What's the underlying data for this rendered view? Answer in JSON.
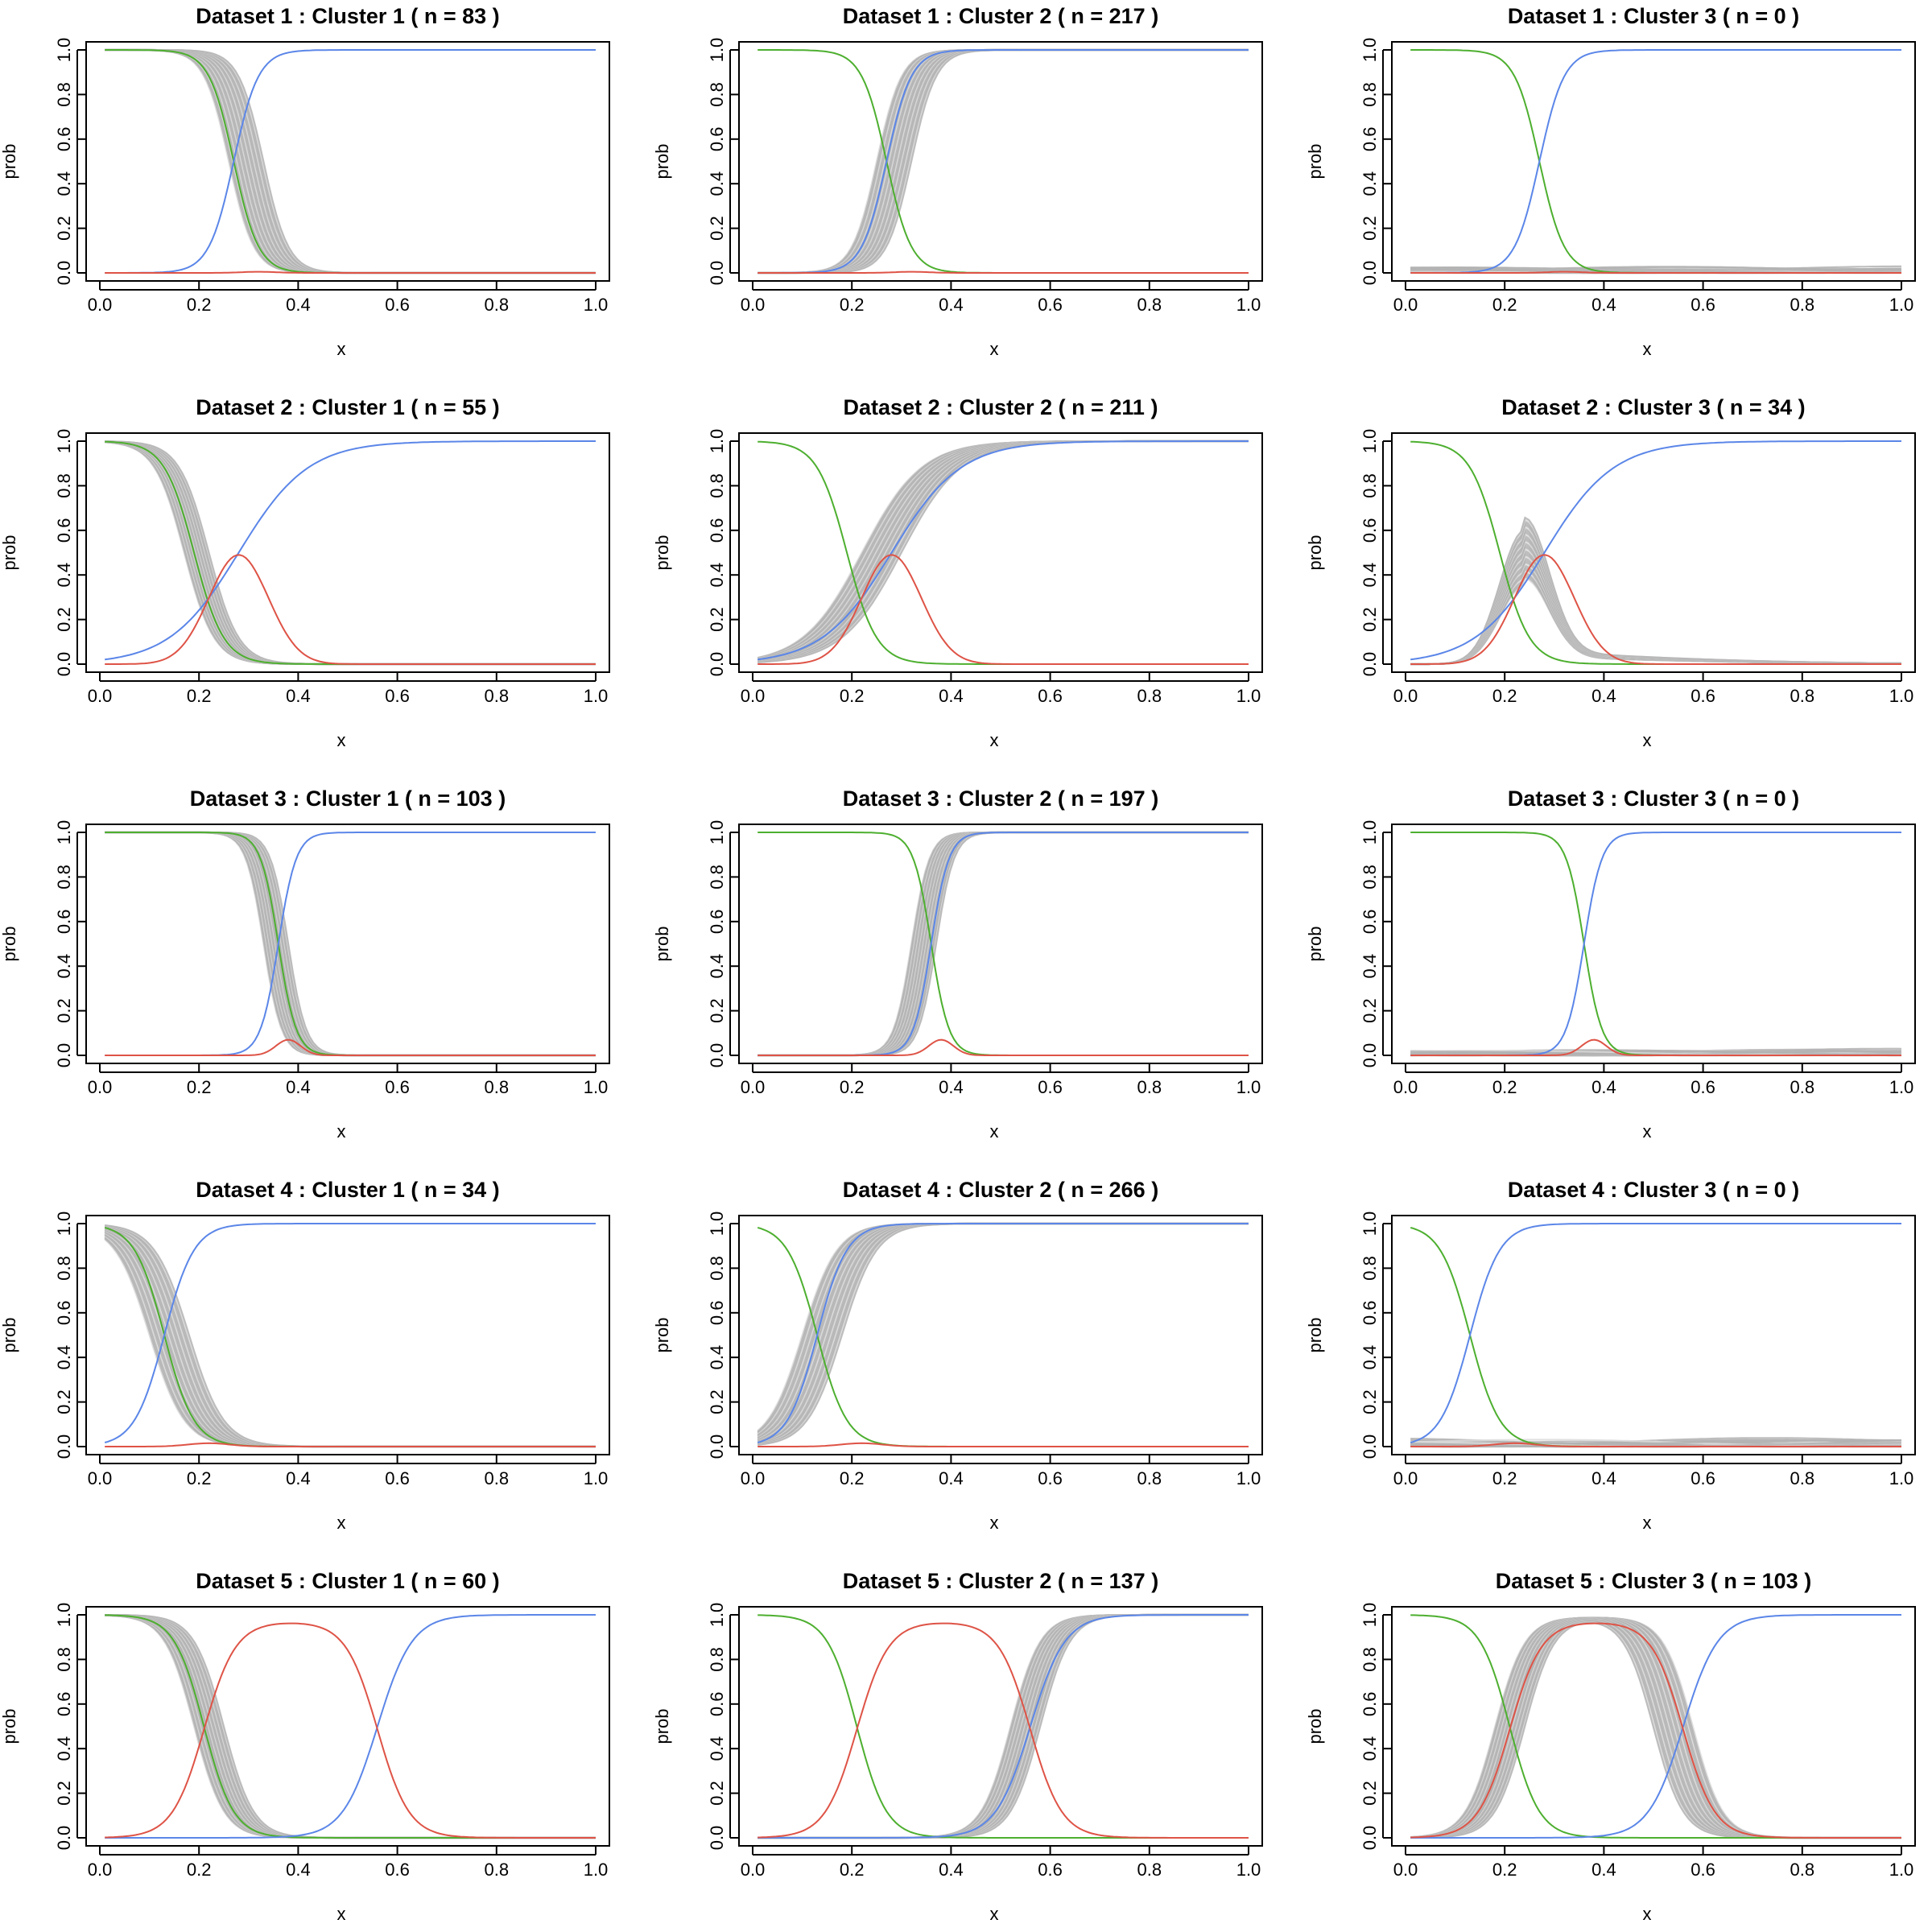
{
  "figure": {
    "xlabel": "x",
    "ylabel": "prob",
    "x_ticks": [
      "0.0",
      "0.2",
      "0.4",
      "0.6",
      "0.8",
      "1.0"
    ],
    "y_ticks": [
      "0.0",
      "0.2",
      "0.4",
      "0.6",
      "0.8",
      "1.0"
    ]
  },
  "colors": {
    "green": "#4daf2f",
    "blue": "#5b86e8",
    "red": "#de5346",
    "grey": "#b3b3b3",
    "grey_light": "#dcdcdc"
  },
  "chart_data": [
    {
      "type": "line",
      "title": "Dataset 1 : Cluster 1 ( n =  83 )",
      "xlabel": "x",
      "ylabel": "prob",
      "xlim": [
        0,
        1
      ],
      "ylim": [
        0,
        1
      ],
      "grid": false,
      "series": [
        {
          "color": "green",
          "shape": "sigmoid_down",
          "center": 0.27,
          "width": 0.025
        },
        {
          "color": "blue",
          "shape": "sigmoid_up",
          "center": 0.27,
          "width": 0.025
        },
        {
          "color": "red",
          "shape": "bump",
          "peak": 0.005,
          "center": 0.32,
          "width": 0.05
        }
      ],
      "band": {
        "shape": "sigmoid_down",
        "center_range": [
          0.26,
          0.33
        ],
        "width": 0.025
      }
    },
    {
      "type": "line",
      "title": "Dataset 1 : Cluster 2 ( n =  217 )",
      "xlabel": "x",
      "ylabel": "prob",
      "xlim": [
        0,
        1
      ],
      "ylim": [
        0,
        1
      ],
      "grid": false,
      "series": [
        {
          "color": "green",
          "shape": "sigmoid_down",
          "center": 0.27,
          "width": 0.025
        },
        {
          "color": "blue",
          "shape": "sigmoid_up",
          "center": 0.27,
          "width": 0.025
        },
        {
          "color": "red",
          "shape": "bump",
          "peak": 0.005,
          "center": 0.32,
          "width": 0.05
        }
      ],
      "band": {
        "shape": "sigmoid_up",
        "center_range": [
          0.25,
          0.32
        ],
        "width": 0.025
      }
    },
    {
      "type": "line",
      "title": "Dataset 1 : Cluster 3 ( n =  0 )",
      "xlabel": "x",
      "ylabel": "prob",
      "xlim": [
        0,
        1
      ],
      "ylim": [
        0,
        1
      ],
      "grid": false,
      "series": [
        {
          "color": "green",
          "shape": "sigmoid_down",
          "center": 0.27,
          "width": 0.025
        },
        {
          "color": "blue",
          "shape": "sigmoid_up",
          "center": 0.27,
          "width": 0.025
        },
        {
          "color": "red",
          "shape": "bump",
          "peak": 0.005,
          "center": 0.32,
          "width": 0.05
        }
      ],
      "band": {
        "shape": "flat",
        "range": [
          0,
          0.03
        ]
      }
    },
    {
      "type": "line",
      "title": "Dataset 2 : Cluster 1 ( n =  55 )",
      "xlabel": "x",
      "ylabel": "prob",
      "xlim": [
        0,
        1
      ],
      "ylim": [
        0,
        1
      ],
      "grid": false,
      "series": [
        {
          "color": "green",
          "shape": "sigmoid_down",
          "center": 0.19,
          "width": 0.03
        },
        {
          "color": "blue",
          "shape": "sigmoid_up_slow",
          "center": 0.28,
          "width": 0.07
        },
        {
          "color": "red",
          "shape": "bump",
          "peak": 0.49,
          "center": 0.28,
          "width": 0.085
        }
      ],
      "band": {
        "shape": "sigmoid_down",
        "center_range": [
          0.17,
          0.22
        ],
        "width": 0.03
      }
    },
    {
      "type": "line",
      "title": "Dataset 2 : Cluster 2 ( n =  211 )",
      "xlabel": "x",
      "ylabel": "prob",
      "xlim": [
        0,
        1
      ],
      "ylim": [
        0,
        1
      ],
      "grid": false,
      "series": [
        {
          "color": "green",
          "shape": "sigmoid_down",
          "center": 0.19,
          "width": 0.03
        },
        {
          "color": "blue",
          "shape": "sigmoid_up_slow",
          "center": 0.28,
          "width": 0.07
        },
        {
          "color": "red",
          "shape": "bump",
          "peak": 0.49,
          "center": 0.28,
          "width": 0.085
        }
      ],
      "band": {
        "shape": "sigmoid_up",
        "center_range": [
          0.22,
          0.3
        ],
        "width": 0.06
      }
    },
    {
      "type": "line",
      "title": "Dataset 2 : Cluster 3 ( n =  34 )",
      "xlabel": "x",
      "ylabel": "prob",
      "xlim": [
        0,
        1
      ],
      "ylim": [
        0,
        1
      ],
      "grid": false,
      "series": [
        {
          "color": "green",
          "shape": "sigmoid_down",
          "center": 0.19,
          "width": 0.03
        },
        {
          "color": "blue",
          "shape": "sigmoid_up_slow",
          "center": 0.28,
          "width": 0.07
        },
        {
          "color": "red",
          "shape": "bump",
          "peak": 0.49,
          "center": 0.28,
          "width": 0.085
        }
      ],
      "band": {
        "shape": "bump",
        "peak_range": [
          0.35,
          0.6
        ],
        "center": 0.24,
        "width": 0.07
      }
    },
    {
      "type": "line",
      "title": "Dataset 3 : Cluster 1 ( n =  103 )",
      "xlabel": "x",
      "ylabel": "prob",
      "xlim": [
        0,
        1
      ],
      "ylim": [
        0,
        1
      ],
      "grid": false,
      "series": [
        {
          "color": "green",
          "shape": "sigmoid_down",
          "center": 0.36,
          "width": 0.018
        },
        {
          "color": "blue",
          "shape": "sigmoid_up",
          "center": 0.36,
          "width": 0.018
        },
        {
          "color": "red",
          "shape": "bump",
          "peak": 0.07,
          "center": 0.38,
          "width": 0.035
        }
      ],
      "band": {
        "shape": "sigmoid_down",
        "center_range": [
          0.33,
          0.38
        ],
        "width": 0.018
      }
    },
    {
      "type": "line",
      "title": "Dataset 3 : Cluster 2 ( n =  197 )",
      "xlabel": "x",
      "ylabel": "prob",
      "xlim": [
        0,
        1
      ],
      "ylim": [
        0,
        1
      ],
      "grid": false,
      "series": [
        {
          "color": "green",
          "shape": "sigmoid_down",
          "center": 0.36,
          "width": 0.018
        },
        {
          "color": "blue",
          "shape": "sigmoid_up",
          "center": 0.36,
          "width": 0.018
        },
        {
          "color": "red",
          "shape": "bump",
          "peak": 0.07,
          "center": 0.38,
          "width": 0.035
        }
      ],
      "band": {
        "shape": "sigmoid_up",
        "center_range": [
          0.32,
          0.37
        ],
        "width": 0.018
      }
    },
    {
      "type": "line",
      "title": "Dataset 3 : Cluster 3 ( n =  0 )",
      "xlabel": "x",
      "ylabel": "prob",
      "xlim": [
        0,
        1
      ],
      "ylim": [
        0,
        1
      ],
      "grid": false,
      "series": [
        {
          "color": "green",
          "shape": "sigmoid_down",
          "center": 0.36,
          "width": 0.018
        },
        {
          "color": "blue",
          "shape": "sigmoid_up",
          "center": 0.36,
          "width": 0.018
        },
        {
          "color": "red",
          "shape": "bump",
          "peak": 0.07,
          "center": 0.38,
          "width": 0.035
        }
      ],
      "band": {
        "shape": "flat",
        "range": [
          0,
          0.03
        ]
      }
    },
    {
      "type": "line",
      "title": "Dataset 4 : Cluster 1 ( n =  34 )",
      "xlabel": "x",
      "ylabel": "prob",
      "xlim": [
        0,
        1
      ],
      "ylim": [
        0,
        1
      ],
      "grid": false,
      "series": [
        {
          "color": "green",
          "shape": "sigmoid_down",
          "center": 0.13,
          "width": 0.03
        },
        {
          "color": "blue",
          "shape": "sigmoid_up",
          "center": 0.13,
          "width": 0.03
        },
        {
          "color": "red",
          "shape": "bump",
          "peak": 0.015,
          "center": 0.22,
          "width": 0.06
        }
      ],
      "band": {
        "shape": "sigmoid_down",
        "center_range": [
          0.1,
          0.18
        ],
        "width": 0.035
      }
    },
    {
      "type": "line",
      "title": "Dataset 4 : Cluster 2 ( n =  266 )",
      "xlabel": "x",
      "ylabel": "prob",
      "xlim": [
        0,
        1
      ],
      "ylim": [
        0,
        1
      ],
      "grid": false,
      "series": [
        {
          "color": "green",
          "shape": "sigmoid_down",
          "center": 0.13,
          "width": 0.03
        },
        {
          "color": "blue",
          "shape": "sigmoid_up",
          "center": 0.13,
          "width": 0.03
        },
        {
          "color": "red",
          "shape": "bump",
          "peak": 0.015,
          "center": 0.22,
          "width": 0.06
        }
      ],
      "band": {
        "shape": "sigmoid_up",
        "center_range": [
          0.1,
          0.18
        ],
        "width": 0.035
      }
    },
    {
      "type": "line",
      "title": "Dataset 4 : Cluster 3 ( n =  0 )",
      "xlabel": "x",
      "ylabel": "prob",
      "xlim": [
        0,
        1
      ],
      "ylim": [
        0,
        1
      ],
      "grid": false,
      "series": [
        {
          "color": "green",
          "shape": "sigmoid_down",
          "center": 0.13,
          "width": 0.03
        },
        {
          "color": "blue",
          "shape": "sigmoid_up",
          "center": 0.13,
          "width": 0.03
        },
        {
          "color": "red",
          "shape": "bump",
          "peak": 0.015,
          "center": 0.22,
          "width": 0.06
        }
      ],
      "band": {
        "shape": "flat",
        "range": [
          0,
          0.04
        ]
      }
    },
    {
      "type": "line",
      "title": "Dataset 5 : Cluster 1 ( n =  60 )",
      "xlabel": "x",
      "ylabel": "prob",
      "xlim": [
        0,
        1
      ],
      "ylim": [
        0,
        1
      ],
      "grid": false,
      "series": [
        {
          "color": "green",
          "shape": "sigmoid_down",
          "center": 0.21,
          "width": 0.03
        },
        {
          "color": "blue",
          "shape": "sigmoid_up",
          "center": 0.56,
          "width": 0.035
        },
        {
          "color": "red",
          "shape": "plateau",
          "peak": 0.97,
          "up": 0.21,
          "down": 0.56,
          "width": 0.032
        }
      ],
      "band": {
        "shape": "sigmoid_down",
        "center_range": [
          0.19,
          0.25
        ],
        "width": 0.03
      }
    },
    {
      "type": "line",
      "title": "Dataset 5 : Cluster 2 ( n =  137 )",
      "xlabel": "x",
      "ylabel": "prob",
      "xlim": [
        0,
        1
      ],
      "ylim": [
        0,
        1
      ],
      "grid": false,
      "series": [
        {
          "color": "green",
          "shape": "sigmoid_down",
          "center": 0.21,
          "width": 0.03
        },
        {
          "color": "blue",
          "shape": "sigmoid_up",
          "center": 0.56,
          "width": 0.035
        },
        {
          "color": "red",
          "shape": "plateau",
          "peak": 0.97,
          "up": 0.21,
          "down": 0.56,
          "width": 0.032
        }
      ],
      "band": {
        "shape": "sigmoid_up",
        "center_range": [
          0.52,
          0.58
        ],
        "width": 0.03
      }
    },
    {
      "type": "line",
      "title": "Dataset 5 : Cluster 3 ( n =  103 )",
      "xlabel": "x",
      "ylabel": "prob",
      "xlim": [
        0,
        1
      ],
      "ylim": [
        0,
        1
      ],
      "grid": false,
      "series": [
        {
          "color": "green",
          "shape": "sigmoid_down",
          "center": 0.21,
          "width": 0.03
        },
        {
          "color": "blue",
          "shape": "sigmoid_up",
          "center": 0.56,
          "width": 0.035
        },
        {
          "color": "red",
          "shape": "plateau",
          "peak": 0.97,
          "up": 0.21,
          "down": 0.56,
          "width": 0.032
        }
      ],
      "band": {
        "shape": "plateau",
        "up_range": [
          0.18,
          0.24
        ],
        "down_range": [
          0.5,
          0.58
        ],
        "width": 0.03
      }
    }
  ]
}
